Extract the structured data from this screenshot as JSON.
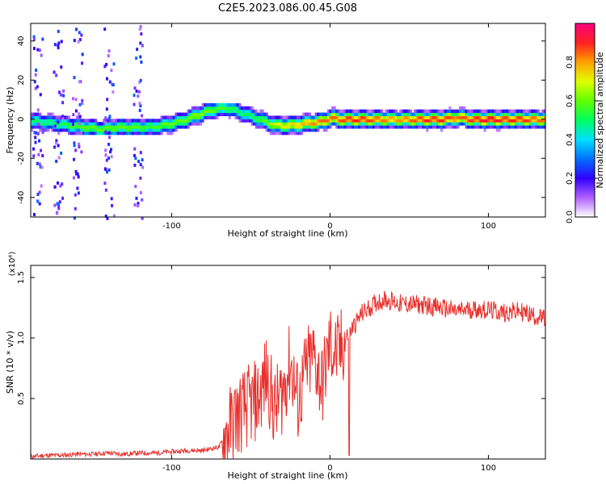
{
  "title": "C2E5.2023.086.00.45.G08",
  "chart_data": [
    {
      "type": "heatmap",
      "xlabel": "Height of straight line (km)",
      "ylabel": "Frequency (Hz)",
      "xlim": [
        -189,
        136
      ],
      "ylim": [
        -50,
        49
      ],
      "xticks": [
        -100,
        0,
        100
      ],
      "xtick_labels": [
        "-100",
        "0",
        "100"
      ],
      "yticks": [
        -40,
        -20,
        0,
        20,
        40
      ],
      "ytick_labels": [
        "-40",
        "-20",
        "0",
        "20",
        "40"
      ],
      "colorbar": {
        "label": "Normalized spectral amplitude",
        "range": [
          0.0,
          1.0
        ],
        "ticks": [
          0.0,
          0.2,
          0.4,
          0.6,
          0.8
        ],
        "tick_labels": [
          "0.0",
          "0.2",
          "0.4",
          "0.6",
          "0.8"
        ],
        "colors": [
          "#ffffff",
          "#b060ff",
          "#3000ff",
          "#0070ff",
          "#00e0ff",
          "#00ff60",
          "#60ff00",
          "#e0ff00",
          "#ffa000",
          "#ff2020",
          "#ff0080"
        ]
      },
      "ridge": {
        "x": [
          -185,
          -175,
          -165,
          -155,
          -145,
          -135,
          -125,
          -115,
          -105,
          -95,
          -85,
          -75,
          -65,
          -55,
          -45,
          -35,
          -25,
          -15,
          -5,
          0,
          5,
          10,
          20,
          30,
          40,
          50,
          60,
          70,
          80,
          90,
          100,
          110,
          120,
          130,
          136
        ],
        "y": [
          -1,
          -2,
          -3,
          -4,
          -5,
          -4,
          -4,
          -4,
          -3,
          -1,
          2,
          5,
          6,
          3,
          0,
          -3,
          -3,
          -2,
          -1,
          1,
          0,
          0,
          0,
          0,
          0,
          0,
          0,
          0,
          1,
          0,
          0,
          0,
          0,
          0,
          0
        ],
        "amplitude": [
          0.5,
          0.5,
          0.55,
          0.6,
          0.6,
          0.6,
          0.6,
          0.55,
          0.6,
          0.6,
          0.65,
          0.6,
          0.55,
          0.5,
          0.55,
          0.7,
          0.75,
          0.8,
          0.85,
          0.85,
          0.85,
          0.9,
          0.9,
          0.85,
          0.8,
          0.85,
          0.9,
          0.9,
          0.85,
          0.9,
          0.95,
          0.9,
          0.9,
          0.85,
          0.85
        ]
      }
    },
    {
      "type": "line",
      "xlabel": "Height of straight line (km)",
      "ylabel": "SNR (10 * v/v)",
      "scale_label": "(x10⁴)",
      "xlim": [
        -189,
        136
      ],
      "ylim": [
        0.0,
        1.6
      ],
      "xticks": [
        -100,
        0,
        100
      ],
      "xtick_labels": [
        "-100",
        "0",
        "100"
      ],
      "yticks": [
        0.5,
        1.0,
        1.5
      ],
      "ytick_labels": [
        "0.5",
        "1.0",
        "1.5"
      ],
      "color": "#e8302c",
      "series": [
        {
          "x": [
            -189,
            -180,
            -170,
            -160,
            -150,
            -140,
            -130,
            -120,
            -110,
            -100,
            -90,
            -80,
            -70,
            -60,
            -50,
            -45,
            -40,
            -35,
            -30,
            -25,
            -20,
            -15,
            -10,
            -5,
            0,
            5,
            10,
            15,
            20,
            25,
            30,
            35,
            40,
            45,
            50,
            60,
            70,
            80,
            90,
            100,
            110,
            120,
            130,
            136
          ],
          "y": [
            0.02,
            0.03,
            0.03,
            0.04,
            0.04,
            0.05,
            0.04,
            0.05,
            0.05,
            0.06,
            0.07,
            0.07,
            0.1,
            0.35,
            0.45,
            0.5,
            0.7,
            0.4,
            0.55,
            0.8,
            0.45,
            0.75,
            0.85,
            0.6,
            0.95,
            0.85,
            1.0,
            1.1,
            1.2,
            1.25,
            1.3,
            1.32,
            1.3,
            1.28,
            1.28,
            1.27,
            1.25,
            1.22,
            1.24,
            1.23,
            1.21,
            1.22,
            1.18,
            1.15
          ]
        }
      ]
    }
  ]
}
